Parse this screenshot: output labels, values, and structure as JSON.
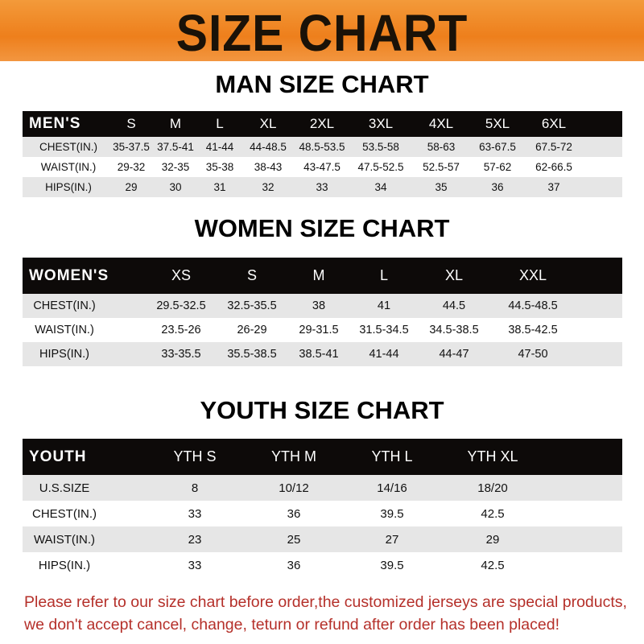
{
  "banner": {
    "title": "SIZE CHART"
  },
  "men": {
    "title": "MAN SIZE CHART",
    "header": [
      "MEN'S",
      "S",
      "M",
      "L",
      "XL",
      "2XL",
      "3XL",
      "4XL",
      "5XL",
      "6XL"
    ],
    "rows": [
      [
        "CHEST(IN.)",
        "35-37.5",
        "37.5-41",
        "41-44",
        "44-48.5",
        "48.5-53.5",
        "53.5-58",
        "58-63",
        "63-67.5",
        "67.5-72"
      ],
      [
        "WAIST(IN.)",
        "29-32",
        "32-35",
        "35-38",
        "38-43",
        "43-47.5",
        "47.5-52.5",
        "52.5-57",
        "57-62",
        "62-66.5"
      ],
      [
        "HIPS(IN.)",
        "29",
        "30",
        "31",
        "32",
        "33",
        "34",
        "35",
        "36",
        "37"
      ]
    ]
  },
  "women": {
    "title": "WOMEN SIZE CHART",
    "header": [
      "WOMEN'S",
      "XS",
      "S",
      "M",
      "L",
      "XL",
      "XXL"
    ],
    "rows": [
      [
        "CHEST(IN.)",
        "29.5-32.5",
        "32.5-35.5",
        "38",
        "41",
        "44.5",
        "44.5-48.5"
      ],
      [
        "WAIST(IN.)",
        "23.5-26",
        "26-29",
        "29-31.5",
        "31.5-34.5",
        "34.5-38.5",
        "38.5-42.5"
      ],
      [
        "HIPS(IN.)",
        "33-35.5",
        "35.5-38.5",
        "38.5-41",
        "41-44",
        "44-47",
        "47-50"
      ]
    ]
  },
  "youth": {
    "title": "YOUTH SIZE CHART",
    "header": [
      "YOUTH",
      "YTH S",
      "YTH M",
      "YTH L",
      "YTH XL"
    ],
    "rows": [
      [
        "U.S.SIZE",
        "8",
        "10/12",
        "14/16",
        "18/20"
      ],
      [
        "CHEST(IN.)",
        "33",
        "36",
        "39.5",
        "42.5"
      ],
      [
        "WAIST(IN.)",
        "23",
        "25",
        "27",
        "29"
      ],
      [
        "HIPS(IN.)",
        "33",
        "36",
        "39.5",
        "42.5"
      ]
    ]
  },
  "footer": {
    "line1": "Please refer to our size chart before order,the customized jerseys are special products,",
    "line2": "we don't accept cancel, change, teturn or refund after order has been placed!"
  },
  "colors": {
    "banner": "#ee7f1c",
    "header_row": "#0d0a09",
    "stripe": "#e6e6e6",
    "notice": "#b5302a"
  }
}
